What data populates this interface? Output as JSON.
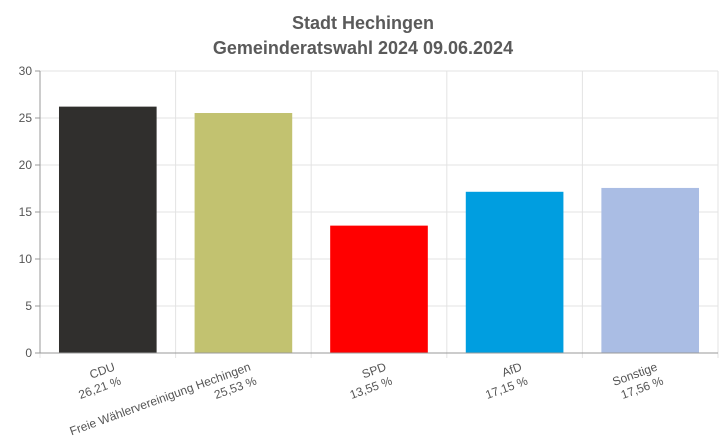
{
  "chart_data": {
    "type": "bar",
    "title_lines": [
      "Stadt Hechingen",
      "Gemeinderatswahl 2024 09.06.2024"
    ],
    "categories": [
      "CDU",
      "Freie Wählervereinigung Hechingen",
      "SPD",
      "AfD",
      "Sonstige"
    ],
    "value_labels": [
      "26,21 %",
      "25,53 %",
      "13,55 %",
      "17,15 %",
      "17,56 %"
    ],
    "values": [
      26.21,
      25.53,
      13.55,
      17.15,
      17.56
    ],
    "colors": [
      "#302f2d",
      "#c2c270",
      "#ff0000",
      "#009ee0",
      "#aabde4"
    ],
    "ylim": [
      0,
      30
    ],
    "yticks": [
      "0",
      "5",
      "10",
      "15",
      "20",
      "25",
      "30"
    ],
    "grid": true,
    "xlabel": "",
    "ylabel": ""
  }
}
